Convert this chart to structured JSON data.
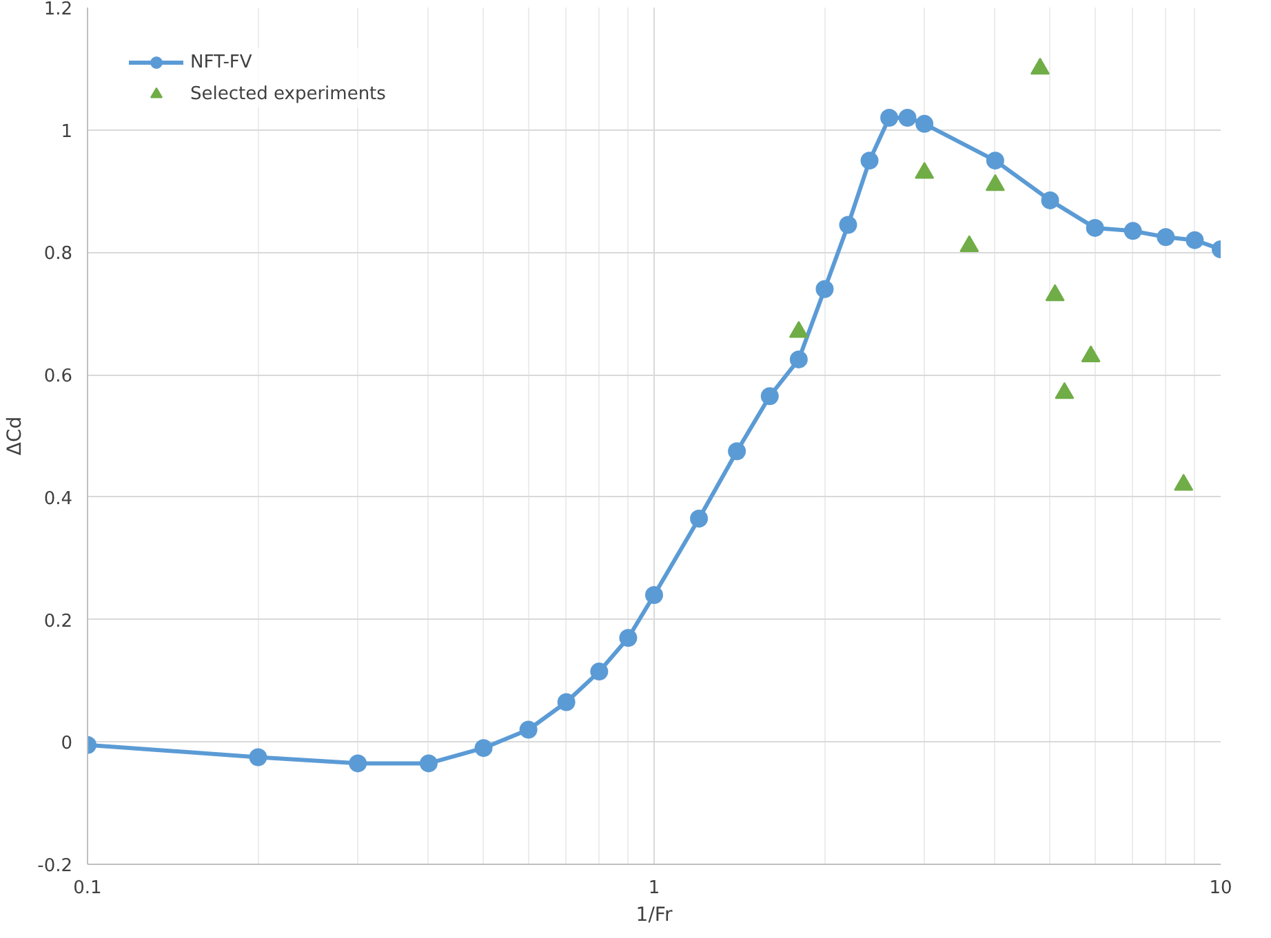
{
  "chart_data": {
    "type": "line",
    "xlabel": "1/Fr",
    "ylabel": "ΔCd",
    "log": "x",
    "xlim": [
      0.1,
      10
    ],
    "xticks": [
      0.1,
      1,
      10
    ],
    "ylim": [
      -0.2,
      1.2
    ],
    "yticks": [
      -0.2,
      0,
      0.2,
      0.4,
      0.6,
      0.8,
      1,
      1.2
    ],
    "grid": true,
    "legend": "top left",
    "series": [
      {
        "name": "NFT-FV",
        "marker": "circle",
        "color": "#5b9bd5",
        "x": [
          0.1,
          0.2,
          0.3,
          0.4,
          0.5,
          0.6,
          0.7,
          0.8,
          0.9,
          1.0,
          1.2,
          1.4,
          1.6,
          1.8,
          2.0,
          2.2,
          2.4,
          2.6,
          2.8,
          3.0,
          4.0,
          5.0,
          6.0,
          7.0,
          8.0,
          9.0,
          10.0
        ],
        "values": [
          -0.005,
          -0.025,
          -0.035,
          -0.035,
          -0.01,
          0.02,
          0.065,
          0.115,
          0.17,
          0.24,
          0.365,
          0.475,
          0.565,
          0.625,
          0.74,
          0.845,
          0.95,
          1.02,
          1.02,
          1.01,
          0.95,
          0.885,
          0.84,
          0.835,
          0.825,
          0.82,
          0.805
        ]
      },
      {
        "name": "Selected experiments",
        "type": "scatter",
        "marker": "triangle",
        "color": "#70ad47",
        "x": [
          1.8,
          3.0,
          3.6,
          4.0,
          4.8,
          5.1,
          5.3,
          5.9,
          8.6
        ],
        "values": [
          0.67,
          0.93,
          0.81,
          0.91,
          1.1,
          0.73,
          0.57,
          0.63,
          0.42
        ]
      }
    ]
  }
}
